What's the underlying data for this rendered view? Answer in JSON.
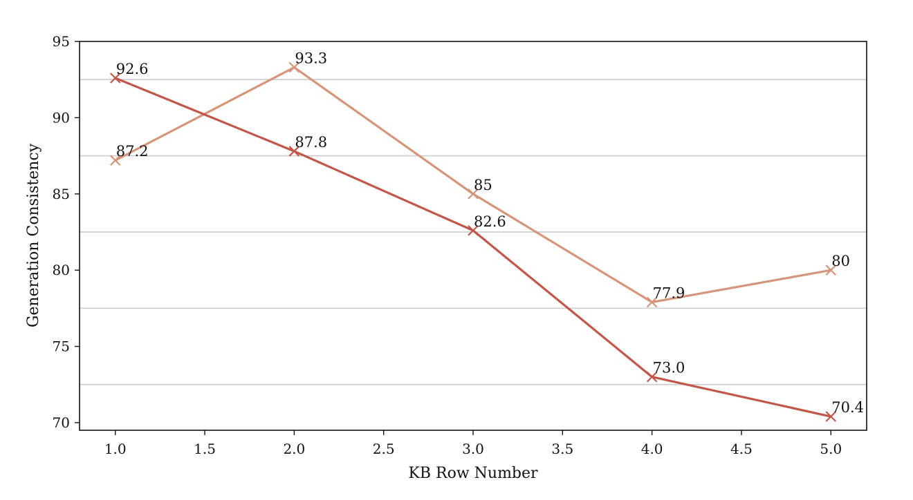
{
  "chart_data": {
    "type": "line",
    "title": "",
    "xlabel": "KB Row Number",
    "ylabel": "Generation Consistency",
    "xlim": [
      0.8,
      5.2
    ],
    "ylim": [
      69.5,
      95
    ],
    "xticks": [
      1.0,
      1.5,
      2.0,
      2.5,
      3.0,
      3.5,
      4.0,
      4.5,
      5.0
    ],
    "xtick_labels": [
      "1.0",
      "1.5",
      "2.0",
      "2.5",
      "3.0",
      "3.5",
      "4.0",
      "4.5",
      "5.0"
    ],
    "yticks": [
      70,
      75,
      80,
      85,
      90,
      95
    ],
    "ytick_labels": [
      "70",
      "75",
      "80",
      "85",
      "90",
      "95"
    ],
    "gridlines_y": [
      72.5,
      77.5,
      82.5,
      87.5,
      92.5
    ],
    "legend": "none",
    "series": [
      {
        "name": "series-1",
        "color": "#c0574a",
        "marker": "x",
        "x": [
          1,
          2,
          3,
          4,
          5
        ],
        "values": [
          92.6,
          87.8,
          82.6,
          73.0,
          70.4
        ],
        "labels": [
          "92.6",
          "87.8",
          "82.6",
          "73.0",
          "70.4"
        ]
      },
      {
        "name": "series-2",
        "color": "#d4957b",
        "marker": "x",
        "x": [
          1,
          2,
          3,
          4,
          5
        ],
        "values": [
          87.2,
          93.3,
          85,
          77.9,
          80
        ],
        "labels": [
          "87.2",
          "93.3",
          "85",
          "77.9",
          "80"
        ]
      }
    ]
  }
}
